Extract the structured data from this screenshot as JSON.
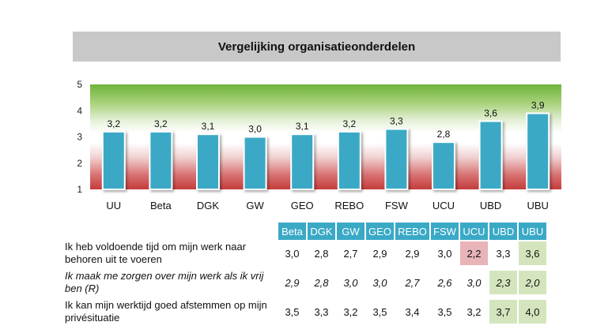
{
  "title": "Vergelijking organisatieonderdelen",
  "colors": {
    "bar": "#3aa9c6",
    "title_bg": "#c8c8c8",
    "table_header": "#3aa9c6",
    "highlight_low": "#e8b4b8",
    "highlight_high": "#d4e5bd",
    "band_top": "#76b83d",
    "band_bottom": "#c43c3c"
  },
  "chart_data": {
    "type": "bar",
    "categories": [
      "UU",
      "Beta",
      "DGK",
      "GW",
      "GEO",
      "REBO",
      "FSW",
      "UCU",
      "UBD",
      "UBU"
    ],
    "values": [
      3.2,
      3.2,
      3.1,
      3.0,
      3.1,
      3.2,
      3.3,
      2.8,
      3.6,
      3.9
    ],
    "value_labels": [
      "3,2",
      "3,2",
      "3,1",
      "3,0",
      "3,1",
      "3,2",
      "3,3",
      "2,8",
      "3,6",
      "3,9"
    ],
    "ylim": [
      1,
      5
    ],
    "yticks": [
      "1",
      "2",
      "3",
      "4",
      "5"
    ],
    "title": "Vergelijking organisatieonderdelen",
    "xlabel": "",
    "ylabel": "",
    "background": "gradient green (top) to white to red (bottom)"
  },
  "table": {
    "columns": [
      "Beta",
      "DGK",
      "GW",
      "GEO",
      "REBO",
      "FSW",
      "UCU",
      "UBD",
      "UBU"
    ],
    "rows": [
      {
        "label": "Ik heb voldoende tijd om mijn werk naar behoren uit te voeren",
        "italic": false,
        "values": [
          "3,0",
          "2,8",
          "2,7",
          "2,9",
          "2,9",
          "3,0",
          "2,2",
          "3,3",
          "3,6"
        ],
        "highlights": [
          "",
          "",
          "",
          "",
          "",
          "",
          "low",
          "",
          "high"
        ]
      },
      {
        "label": "Ik maak me zorgen over mijn werk als ik vrij ben (R)",
        "italic": true,
        "values": [
          "2,9",
          "2,8",
          "3,0",
          "3,0",
          "2,7",
          "2,6",
          "3,0",
          "2,3",
          "2,0"
        ],
        "highlights": [
          "",
          "",
          "",
          "",
          "",
          "",
          "",
          "high",
          "high"
        ]
      },
      {
        "label": "Ik kan mijn werktijd goed afstemmen op mijn privésituatie",
        "italic": false,
        "values": [
          "3,5",
          "3,3",
          "3,2",
          "3,5",
          "3,4",
          "3,5",
          "3,2",
          "3,7",
          "4,0"
        ],
        "highlights": [
          "",
          "",
          "",
          "",
          "",
          "",
          "",
          "high",
          "high"
        ]
      }
    ]
  }
}
